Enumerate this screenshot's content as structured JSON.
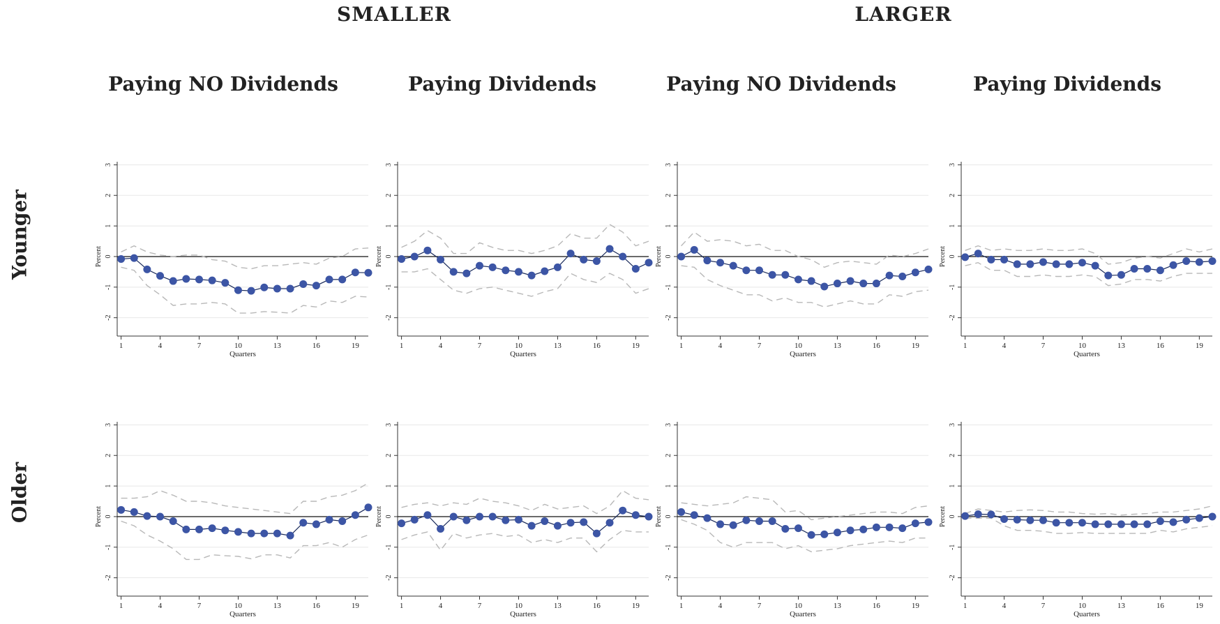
{
  "group_titles": [
    "SMALLER",
    "LARGER"
  ],
  "column_titles": [
    "Paying NO Dividends",
    "Paying Dividends",
    "Paying NO Dividends",
    "Paying Dividends"
  ],
  "row_titles": [
    "Younger",
    "Older"
  ],
  "colors": {
    "point": "#3c55a5",
    "band": "#b8b8b8",
    "zero_line": "#111111",
    "grid": "#e8e8e8"
  },
  "chart_data": [
    {
      "type": "line",
      "row": "Younger",
      "column": "Paying NO Dividends",
      "group": "SMALLER",
      "xlabel": "Quarters",
      "ylabel": "Percent",
      "xticks": [
        1,
        4,
        7,
        10,
        13,
        16,
        19
      ],
      "yticks": [
        -2,
        -1,
        0,
        1,
        2,
        3
      ],
      "ylim": [
        -2.6,
        3.1
      ],
      "xlim": [
        0.7,
        20
      ],
      "x": [
        1,
        2,
        3,
        4,
        5,
        6,
        7,
        8,
        9,
        10,
        11,
        12,
        13,
        14,
        15,
        16,
        17,
        18,
        19,
        20
      ],
      "series": [
        {
          "role": "estimate",
          "values": [
            -0.08,
            -0.05,
            -0.42,
            -0.63,
            -0.8,
            -0.73,
            -0.75,
            -0.78,
            -0.86,
            -1.1,
            -1.12,
            -1.01,
            -1.05,
            -1.05,
            -0.9,
            -0.95,
            -0.75,
            -0.75,
            -0.52,
            -0.53
          ]
        },
        {
          "role": "upper",
          "values": [
            0.15,
            0.35,
            0.15,
            0.05,
            0.0,
            0.05,
            0.05,
            -0.1,
            -0.15,
            -0.35,
            -0.4,
            -0.3,
            -0.3,
            -0.25,
            -0.2,
            -0.25,
            -0.05,
            0.0,
            0.25,
            0.28
          ]
        },
        {
          "role": "lower",
          "values": [
            -0.35,
            -0.45,
            -0.95,
            -1.25,
            -1.6,
            -1.55,
            -1.55,
            -1.5,
            -1.55,
            -1.85,
            -1.85,
            -1.8,
            -1.82,
            -1.85,
            -1.6,
            -1.65,
            -1.45,
            -1.5,
            -1.3,
            -1.32
          ]
        }
      ]
    },
    {
      "type": "line",
      "row": "Younger",
      "column": "Paying Dividends",
      "group": "SMALLER",
      "xlabel": "Quarters",
      "ylabel": "Percent",
      "xticks": [
        1,
        4,
        7,
        10,
        13,
        16,
        19
      ],
      "yticks": [
        -2,
        -1,
        0,
        1,
        2,
        3
      ],
      "ylim": [
        -2.6,
        3.1
      ],
      "xlim": [
        0.7,
        20
      ],
      "x": [
        1,
        2,
        3,
        4,
        5,
        6,
        7,
        8,
        9,
        10,
        11,
        12,
        13,
        14,
        15,
        16,
        17,
        18,
        19,
        20
      ],
      "series": [
        {
          "role": "estimate",
          "values": [
            -0.08,
            0.0,
            0.2,
            -0.1,
            -0.5,
            -0.55,
            -0.3,
            -0.35,
            -0.45,
            -0.5,
            -0.62,
            -0.48,
            -0.35,
            0.1,
            -0.1,
            -0.15,
            0.25,
            0.0,
            -0.4,
            -0.2
          ]
        },
        {
          "role": "upper",
          "values": [
            0.3,
            0.5,
            0.85,
            0.6,
            0.1,
            0.1,
            0.45,
            0.3,
            0.2,
            0.2,
            0.1,
            0.2,
            0.35,
            0.75,
            0.6,
            0.6,
            1.05,
            0.8,
            0.35,
            0.5
          ]
        },
        {
          "role": "lower",
          "values": [
            -0.5,
            -0.5,
            -0.4,
            -0.75,
            -1.1,
            -1.2,
            -1.05,
            -1.0,
            -1.1,
            -1.2,
            -1.3,
            -1.15,
            -1.05,
            -0.55,
            -0.75,
            -0.85,
            -0.55,
            -0.75,
            -1.2,
            -1.05
          ]
        }
      ]
    },
    {
      "type": "line",
      "row": "Younger",
      "column": "Paying NO Dividends",
      "group": "LARGER",
      "xlabel": "Quarters",
      "ylabel": "Percent",
      "xticks": [
        1,
        4,
        7,
        10,
        13,
        16,
        19
      ],
      "yticks": [
        -2,
        -1,
        0,
        1,
        2,
        3
      ],
      "ylim": [
        -2.6,
        3.1
      ],
      "xlim": [
        0.7,
        20
      ],
      "x": [
        1,
        2,
        3,
        4,
        5,
        6,
        7,
        8,
        9,
        10,
        11,
        12,
        13,
        14,
        15,
        16,
        17,
        18,
        19,
        20
      ],
      "series": [
        {
          "role": "estimate",
          "values": [
            0.0,
            0.22,
            -0.13,
            -0.2,
            -0.3,
            -0.45,
            -0.45,
            -0.6,
            -0.6,
            -0.75,
            -0.8,
            -0.98,
            -0.88,
            -0.8,
            -0.88,
            -0.88,
            -0.62,
            -0.65,
            -0.52,
            -0.42
          ]
        },
        {
          "role": "upper",
          "values": [
            0.35,
            0.8,
            0.5,
            0.55,
            0.5,
            0.35,
            0.4,
            0.2,
            0.2,
            0.0,
            -0.1,
            -0.35,
            -0.2,
            -0.15,
            -0.2,
            -0.25,
            0.05,
            0.0,
            0.1,
            0.25
          ]
        },
        {
          "role": "lower",
          "values": [
            -0.3,
            -0.35,
            -0.75,
            -0.95,
            -1.1,
            -1.25,
            -1.25,
            -1.45,
            -1.35,
            -1.5,
            -1.5,
            -1.65,
            -1.55,
            -1.45,
            -1.55,
            -1.55,
            -1.25,
            -1.3,
            -1.15,
            -1.1
          ]
        }
      ]
    },
    {
      "type": "line",
      "row": "Younger",
      "column": "Paying Dividends",
      "group": "LARGER",
      "xlabel": "Quarters",
      "ylabel": "Percent",
      "xticks": [
        1,
        4,
        7,
        10,
        13,
        16,
        19
      ],
      "yticks": [
        -2,
        -1,
        0,
        1,
        2,
        3
      ],
      "ylim": [
        -2.6,
        3.1
      ],
      "xlim": [
        0.7,
        20
      ],
      "x": [
        1,
        2,
        3,
        4,
        5,
        6,
        7,
        8,
        9,
        10,
        11,
        12,
        13,
        14,
        15,
        16,
        17,
        18,
        19,
        20
      ],
      "series": [
        {
          "role": "estimate",
          "values": [
            -0.02,
            0.1,
            -0.1,
            -0.1,
            -0.25,
            -0.25,
            -0.18,
            -0.25,
            -0.25,
            -0.2,
            -0.3,
            -0.62,
            -0.6,
            -0.4,
            -0.4,
            -0.45,
            -0.28,
            -0.15,
            -0.18,
            -0.15
          ]
        },
        {
          "role": "upper",
          "values": [
            0.2,
            0.35,
            0.2,
            0.25,
            0.2,
            0.2,
            0.25,
            0.2,
            0.2,
            0.25,
            0.1,
            -0.25,
            -0.2,
            -0.05,
            0.0,
            -0.05,
            0.1,
            0.25,
            0.15,
            0.25
          ]
        },
        {
          "role": "lower",
          "values": [
            -0.3,
            -0.2,
            -0.45,
            -0.45,
            -0.65,
            -0.65,
            -0.6,
            -0.65,
            -0.65,
            -0.6,
            -0.65,
            -0.95,
            -0.9,
            -0.75,
            -0.75,
            -0.8,
            -0.65,
            -0.55,
            -0.55,
            -0.55
          ]
        }
      ]
    },
    {
      "type": "line",
      "row": "Older",
      "column": "Paying NO Dividends",
      "group": "SMALLER",
      "xlabel": "Quarters",
      "ylabel": "Percent",
      "xticks": [
        1,
        4,
        7,
        10,
        13,
        16,
        19
      ],
      "yticks": [
        -2,
        -1,
        0,
        1,
        2,
        3
      ],
      "ylim": [
        -2.6,
        3.1
      ],
      "xlim": [
        0.7,
        20
      ],
      "x": [
        1,
        2,
        3,
        4,
        5,
        6,
        7,
        8,
        9,
        10,
        11,
        12,
        13,
        14,
        15,
        16,
        17,
        18,
        19,
        20
      ],
      "series": [
        {
          "role": "estimate",
          "values": [
            0.22,
            0.15,
            0.02,
            0.0,
            -0.15,
            -0.42,
            -0.42,
            -0.38,
            -0.45,
            -0.5,
            -0.55,
            -0.55,
            -0.55,
            -0.62,
            -0.2,
            -0.25,
            -0.1,
            -0.15,
            0.05,
            0.3
          ]
        },
        {
          "role": "upper",
          "values": [
            0.6,
            0.6,
            0.65,
            0.85,
            0.7,
            0.5,
            0.5,
            0.45,
            0.35,
            0.3,
            0.25,
            0.2,
            0.15,
            0.1,
            0.5,
            0.5,
            0.65,
            0.7,
            0.85,
            1.1
          ]
        },
        {
          "role": "lower",
          "values": [
            -0.15,
            -0.3,
            -0.6,
            -0.8,
            -1.05,
            -1.4,
            -1.4,
            -1.25,
            -1.28,
            -1.3,
            -1.38,
            -1.25,
            -1.25,
            -1.35,
            -0.95,
            -0.95,
            -0.85,
            -1.0,
            -0.75,
            -0.6
          ]
        }
      ]
    },
    {
      "type": "line",
      "row": "Older",
      "column": "Paying Dividends",
      "group": "SMALLER",
      "xlabel": "Quarters",
      "ylabel": "Percent",
      "xticks": [
        1,
        4,
        7,
        10,
        13,
        16,
        19
      ],
      "yticks": [
        -2,
        -1,
        0,
        1,
        2,
        3
      ],
      "ylim": [
        -2.6,
        3.1
      ],
      "xlim": [
        0.7,
        20
      ],
      "x": [
        1,
        2,
        3,
        4,
        5,
        6,
        7,
        8,
        9,
        10,
        11,
        12,
        13,
        14,
        15,
        16,
        17,
        18,
        19,
        20
      ],
      "series": [
        {
          "role": "estimate",
          "values": [
            -0.22,
            -0.1,
            0.05,
            -0.4,
            0.0,
            -0.12,
            0.0,
            0.0,
            -0.12,
            -0.1,
            -0.3,
            -0.15,
            -0.3,
            -0.2,
            -0.18,
            -0.55,
            -0.2,
            0.2,
            0.05,
            0.0
          ]
        },
        {
          "role": "upper",
          "values": [
            0.3,
            0.4,
            0.45,
            0.35,
            0.45,
            0.4,
            0.6,
            0.5,
            0.45,
            0.35,
            0.2,
            0.4,
            0.25,
            0.3,
            0.35,
            0.1,
            0.35,
            0.85,
            0.6,
            0.55
          ]
        },
        {
          "role": "lower",
          "values": [
            -0.75,
            -0.6,
            -0.5,
            -1.1,
            -0.55,
            -0.7,
            -0.6,
            -0.55,
            -0.65,
            -0.6,
            -0.85,
            -0.75,
            -0.85,
            -0.7,
            -0.7,
            -1.15,
            -0.75,
            -0.45,
            -0.5,
            -0.5
          ]
        }
      ]
    },
    {
      "type": "line",
      "row": "Older",
      "column": "Paying NO Dividends",
      "group": "LARGER",
      "xlabel": "Quarters",
      "ylabel": "Percent",
      "xticks": [
        1,
        4,
        7,
        10,
        13,
        16,
        19
      ],
      "yticks": [
        -2,
        -1,
        0,
        1,
        2,
        3
      ],
      "ylim": [
        -2.6,
        3.1
      ],
      "xlim": [
        0.7,
        20
      ],
      "x": [
        1,
        2,
        3,
        4,
        5,
        6,
        7,
        8,
        9,
        10,
        11,
        12,
        13,
        14,
        15,
        16,
        17,
        18,
        19,
        20
      ],
      "series": [
        {
          "role": "estimate",
          "values": [
            0.15,
            0.05,
            -0.05,
            -0.25,
            -0.28,
            -0.12,
            -0.15,
            -0.15,
            -0.4,
            -0.38,
            -0.6,
            -0.58,
            -0.52,
            -0.45,
            -0.42,
            -0.35,
            -0.35,
            -0.38,
            -0.22,
            -0.18
          ]
        },
        {
          "role": "upper",
          "values": [
            0.45,
            0.4,
            0.35,
            0.4,
            0.45,
            0.65,
            0.6,
            0.55,
            0.15,
            0.2,
            -0.1,
            -0.05,
            0.0,
            0.05,
            0.1,
            0.15,
            0.15,
            0.1,
            0.3,
            0.35
          ]
        },
        {
          "role": "lower",
          "values": [
            -0.1,
            -0.25,
            -0.45,
            -0.85,
            -1.0,
            -0.85,
            -0.85,
            -0.85,
            -1.05,
            -0.95,
            -1.15,
            -1.1,
            -1.05,
            -0.95,
            -0.9,
            -0.85,
            -0.8,
            -0.85,
            -0.7,
            -0.7
          ]
        }
      ]
    },
    {
      "type": "line",
      "row": "Older",
      "column": "Paying Dividends",
      "group": "LARGER",
      "xlabel": "Quarters",
      "ylabel": "Percent",
      "xticks": [
        1,
        4,
        7,
        10,
        13,
        16,
        19
      ],
      "yticks": [
        -2,
        -1,
        0,
        1,
        2,
        3
      ],
      "ylim": [
        -2.6,
        3.1
      ],
      "xlim": [
        0.7,
        20
      ],
      "x": [
        1,
        2,
        3,
        4,
        5,
        6,
        7,
        8,
        9,
        10,
        11,
        12,
        13,
        14,
        15,
        16,
        17,
        18,
        19,
        20
      ],
      "series": [
        {
          "role": "estimate",
          "values": [
            0.02,
            0.08,
            0.07,
            -0.08,
            -0.1,
            -0.12,
            -0.12,
            -0.2,
            -0.2,
            -0.2,
            -0.25,
            -0.25,
            -0.25,
            -0.25,
            -0.25,
            -0.15,
            -0.18,
            -0.1,
            -0.05,
            0.0
          ]
        },
        {
          "role": "upper",
          "values": [
            0.1,
            0.25,
            0.2,
            0.15,
            0.2,
            0.22,
            0.2,
            0.15,
            0.15,
            0.1,
            0.08,
            0.1,
            0.05,
            0.08,
            0.1,
            0.15,
            0.15,
            0.2,
            0.25,
            0.35
          ]
        },
        {
          "role": "lower",
          "values": [
            -0.05,
            -0.05,
            -0.05,
            -0.3,
            -0.45,
            -0.45,
            -0.48,
            -0.55,
            -0.55,
            -0.52,
            -0.55,
            -0.55,
            -0.55,
            -0.55,
            -0.55,
            -0.45,
            -0.5,
            -0.4,
            -0.35,
            -0.3
          ]
        }
      ]
    }
  ]
}
